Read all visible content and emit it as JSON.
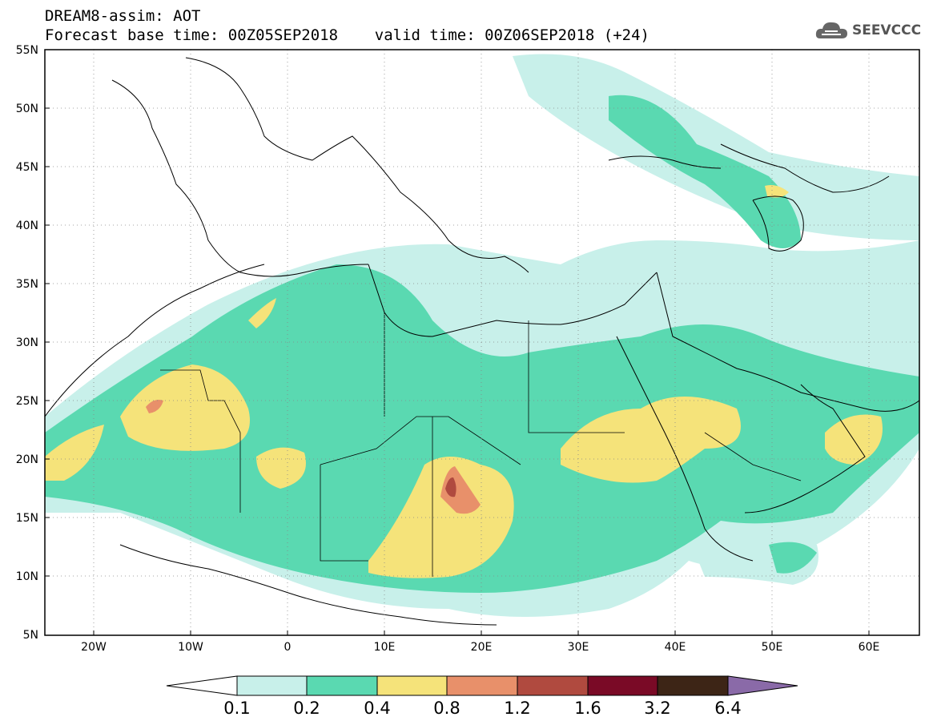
{
  "title": {
    "line1": "DREAM8-assim: AOT",
    "line2": "Forecast base time: 00Z05SEP2018    valid time: 00Z06SEP2018 (+24)"
  },
  "logo": {
    "text": "SEEVCCC",
    "icon": "cloud-icon"
  },
  "map": {
    "lat_labels": [
      "55N",
      "50N",
      "45N",
      "40N",
      "35N",
      "30N",
      "25N",
      "20N",
      "15N",
      "10N",
      "5N"
    ],
    "lon_labels": [
      "20W",
      "10W",
      "0",
      "10E",
      "20E",
      "30E",
      "40E",
      "50E",
      "60E"
    ],
    "lat_range": [
      5,
      55
    ],
    "lon_range": [
      -25,
      65
    ],
    "grid": "dotted"
  },
  "colorbar": {
    "labels": [
      "0.1",
      "0.2",
      "0.4",
      "0.8",
      "1.2",
      "1.6",
      "3.2",
      "6.4"
    ],
    "colors": [
      "#ffffff",
      "#c8f0ea",
      "#5ad9b1",
      "#f5e37a",
      "#e8906a",
      "#b04a3f",
      "#7a0a26",
      "#3d2516",
      "#8a6aa8"
    ]
  }
}
